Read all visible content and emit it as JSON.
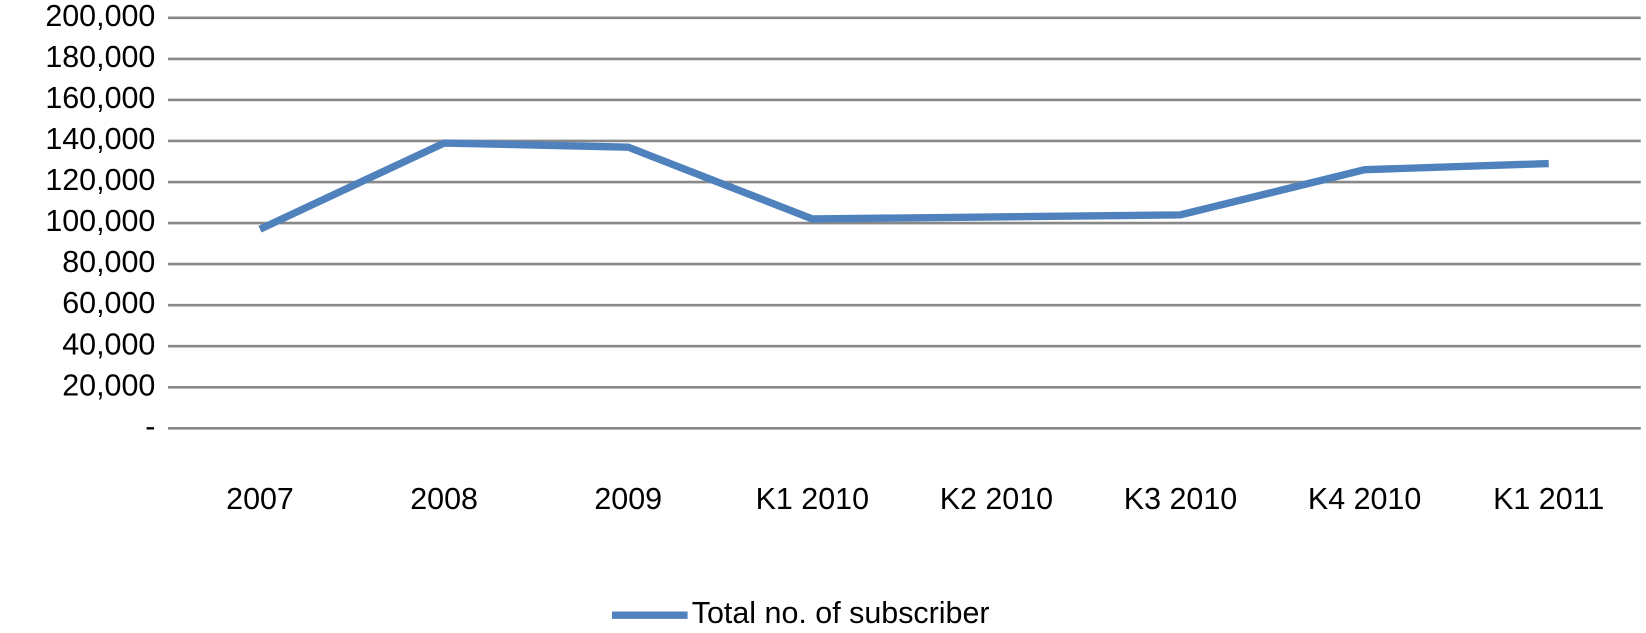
{
  "chart_data": {
    "type": "line",
    "categories": [
      "2007",
      "2008",
      "2009",
      "K1 2010",
      "K2 2010",
      "K3 2010",
      "K4 2010",
      "K1 2011"
    ],
    "series": [
      {
        "name": "Total no. of subscriber",
        "color": "#4f81bd",
        "values": [
          97000,
          139000,
          137000,
          102000,
          103000,
          104000,
          126000,
          129000
        ]
      }
    ],
    "ylim": [
      0,
      200000
    ],
    "yticks": [
      {
        "value": 0,
        "label": "-"
      },
      {
        "value": 20000,
        "label": "20,000"
      },
      {
        "value": 40000,
        "label": "40,000"
      },
      {
        "value": 60000,
        "label": "60,000"
      },
      {
        "value": 80000,
        "label": "80,000"
      },
      {
        "value": 100000,
        "label": "100,000"
      },
      {
        "value": 120000,
        "label": "120,000"
      },
      {
        "value": 140000,
        "label": "140,000"
      },
      {
        "value": 160000,
        "label": "160,000"
      },
      {
        "value": 180000,
        "label": "180,000"
      },
      {
        "value": 200000,
        "label": "200,000"
      }
    ],
    "grid": true,
    "legend": "bottom"
  }
}
